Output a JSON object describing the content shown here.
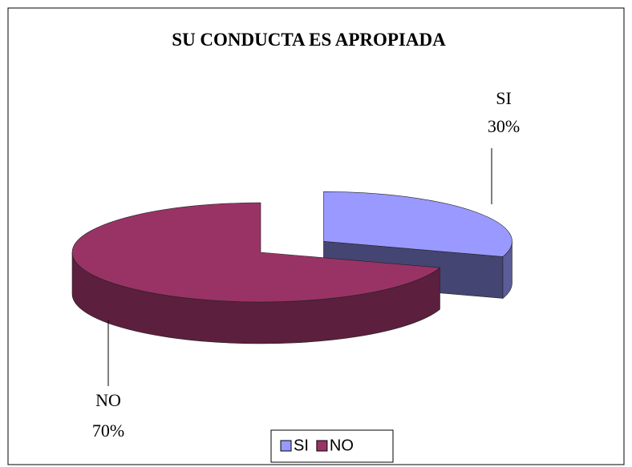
{
  "chart_data": {
    "type": "pie",
    "title": "SU CONDUCTA ES APROPIADA",
    "categories": [
      "SI",
      "NO"
    ],
    "values": [
      30,
      70
    ],
    "value_labels": [
      "30%",
      "70%"
    ],
    "colors": [
      "#9999ff",
      "#993366"
    ],
    "legend": "bottom",
    "exploded": "SI"
  }
}
